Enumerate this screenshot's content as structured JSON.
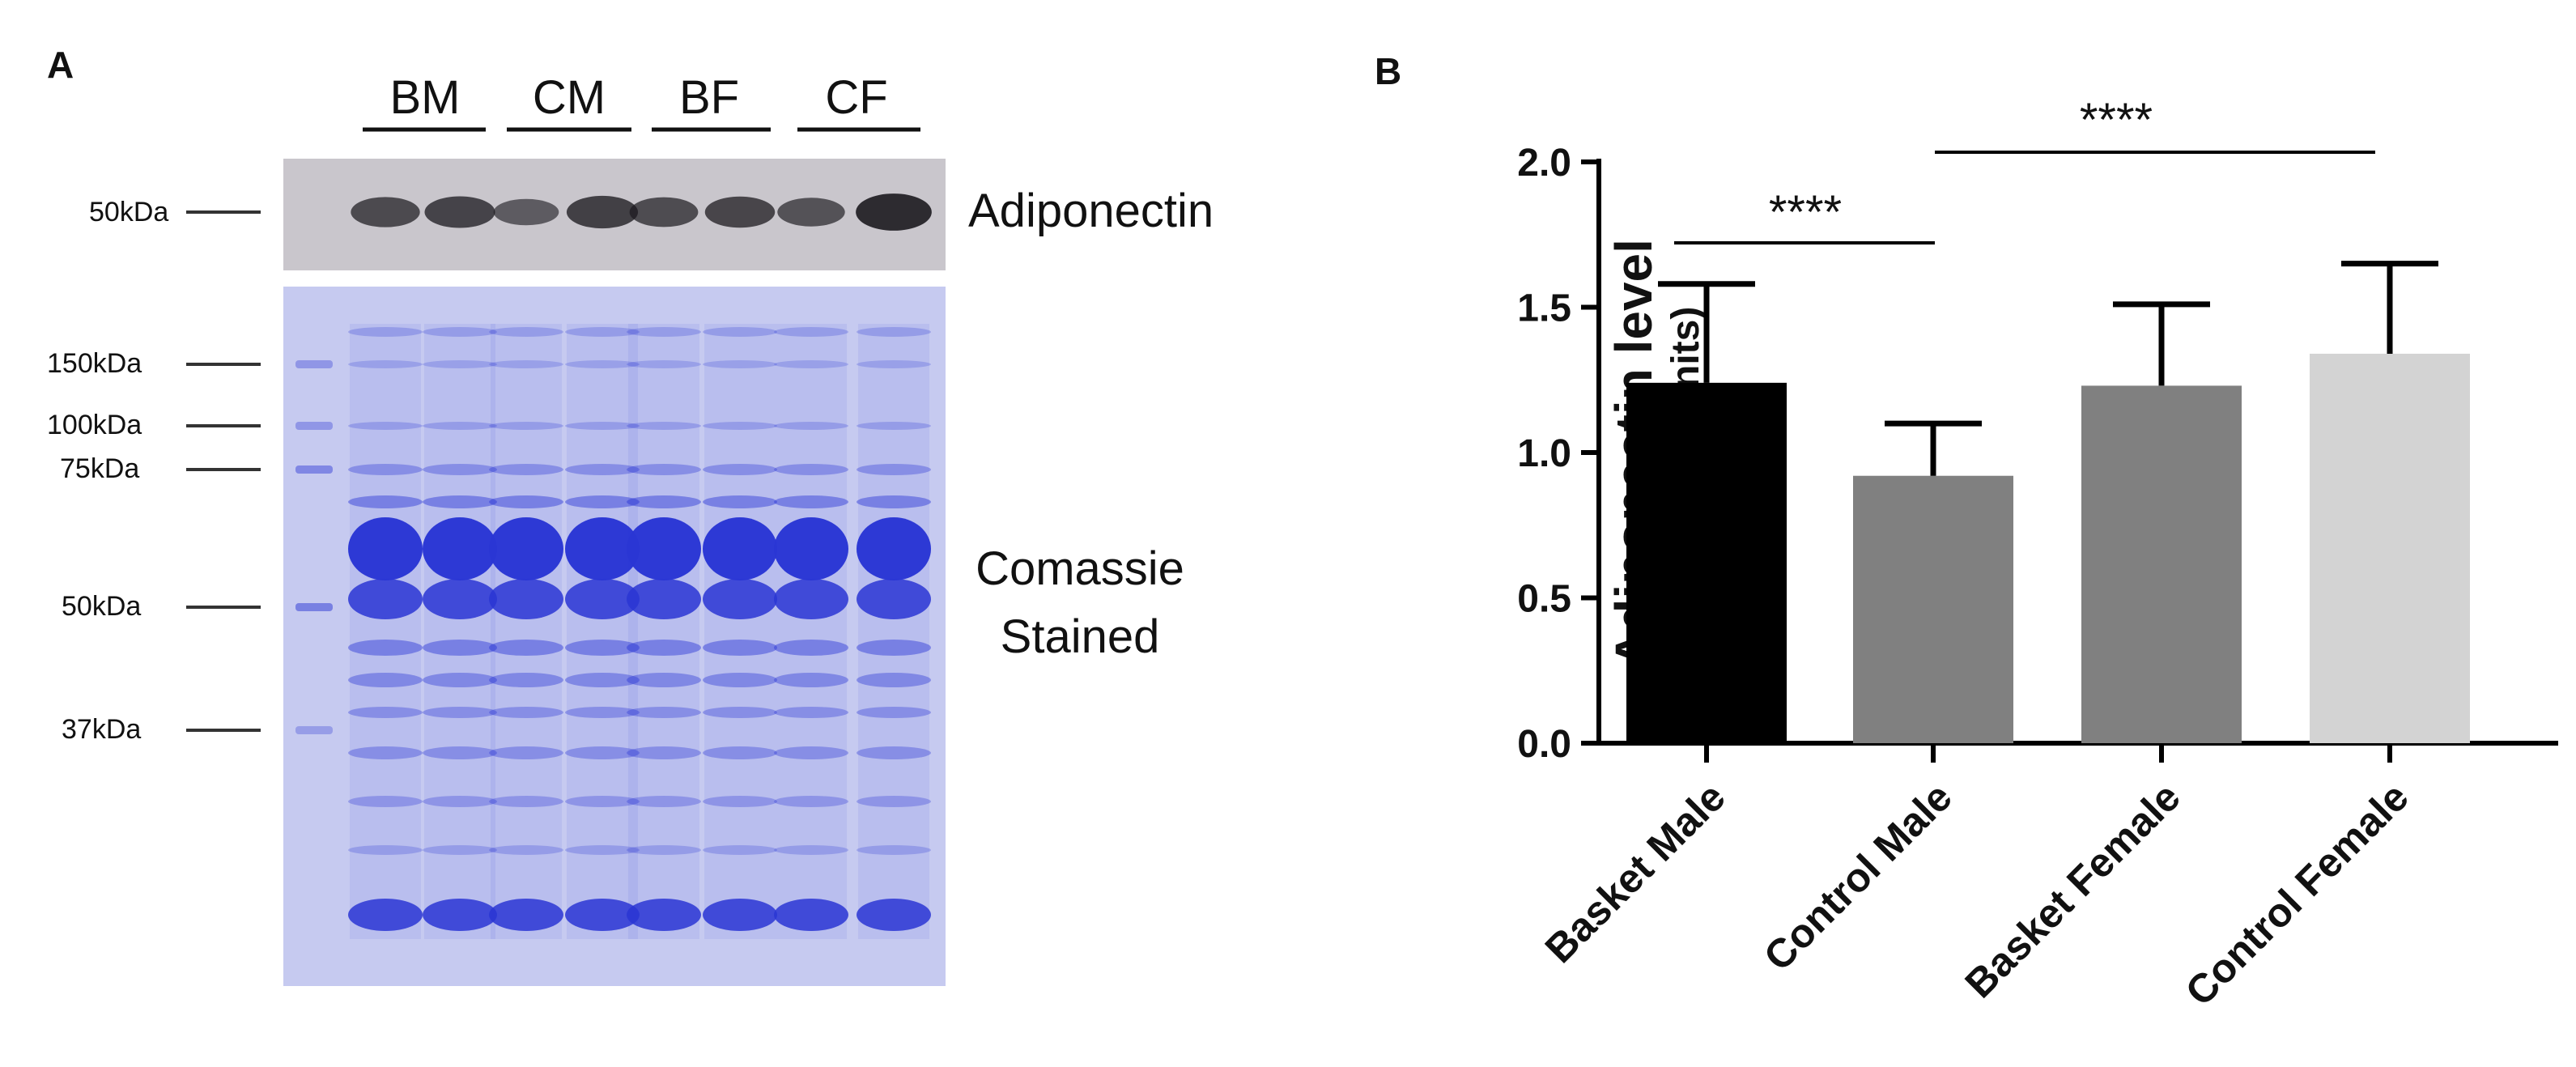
{
  "panel_a": {
    "label": "A",
    "lane_groups": [
      "BM",
      "CM",
      "BF",
      "CF"
    ],
    "top_blot": {
      "marker": "50kDa",
      "label": "Adiponectin",
      "band_intensities": [
        0.62,
        0.68,
        0.45,
        0.72,
        0.6,
        0.66,
        0.55,
        0.92
      ]
    },
    "stained_gel": {
      "markers": [
        "150kDa",
        "100kDa",
        "75kDa",
        "50kDa",
        "37kDa"
      ],
      "label_lines": [
        "Comassie",
        "Stained"
      ]
    },
    "colors": {
      "blot_bg": "#c9c6cc",
      "band": "#1c1a1f",
      "gel_bg": "#c6caf0",
      "gel_band": "#2a36d4"
    }
  },
  "panel_b": {
    "label": "B",
    "significance": [
      "****",
      "****"
    ],
    "chart_data": {
      "type": "bar",
      "categories": [
        "Basket Male",
        "Control Male",
        "Basket Female",
        "Control Female"
      ],
      "values": [
        1.24,
        0.92,
        1.23,
        1.34
      ],
      "error": [
        0.34,
        0.18,
        0.28,
        0.31
      ],
      "colors": [
        "#000000",
        "#808080",
        "#808080",
        "#d3d3d3"
      ],
      "ylabel": "Adiponectin level",
      "ylabel_sub": "(Arbitrary units)",
      "ylim": [
        0,
        2.0
      ],
      "yticks": [
        "0.0",
        "0.5",
        "1.0",
        "1.5",
        "2.0"
      ],
      "grid": false,
      "brackets": [
        {
          "from": "Basket Male",
          "to": "Control Male",
          "label": "****"
        },
        {
          "from": "Control Male",
          "to": "Control Female",
          "label": "****"
        }
      ]
    }
  }
}
